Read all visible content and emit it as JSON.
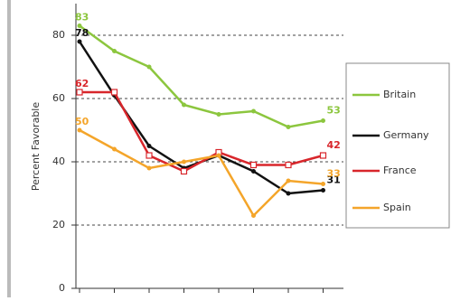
{
  "chart_data": {
    "type": "line",
    "y_label": "Percent Favorable",
    "categories": [
      null,
      null,
      null,
      null,
      null,
      null,
      null,
      null
    ],
    "series": [
      {
        "name": "Britain",
        "color": "#8cc63e",
        "values": [
          83,
          75,
          70,
          58,
          55,
          56,
          51,
          53
        ]
      },
      {
        "name": "Germany",
        "color": "#111111",
        "values": [
          78,
          61,
          45,
          38,
          42,
          37,
          30,
          31
        ]
      },
      {
        "name": "France",
        "color": "#d8262b",
        "values": [
          62,
          62,
          42,
          37,
          43,
          39,
          39,
          42
        ]
      },
      {
        "name": "Spain",
        "color": "#f4a52a",
        "values": [
          50,
          44,
          38,
          40,
          42,
          23,
          34,
          33
        ]
      }
    ],
    "ylim": [
      0,
      90
    ],
    "yticks": [
      0,
      20,
      40,
      60,
      80
    ],
    "grid": true,
    "legend": "right"
  }
}
